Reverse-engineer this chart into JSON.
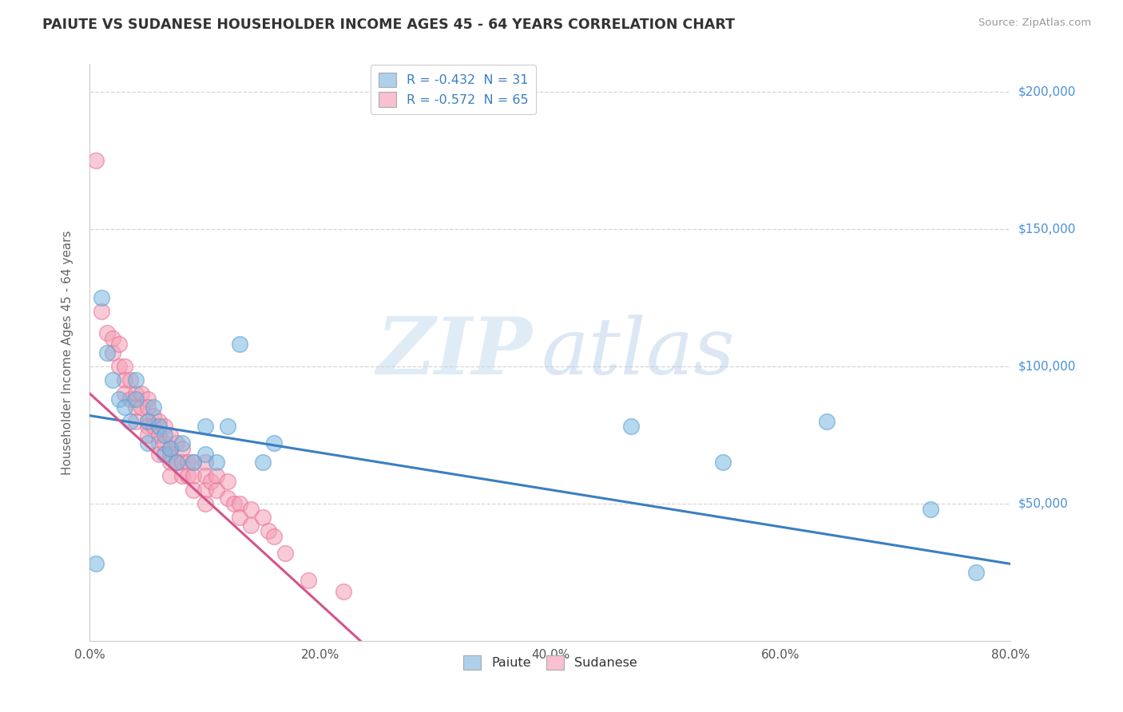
{
  "title": "PAIUTE VS SUDANESE HOUSEHOLDER INCOME AGES 45 - 64 YEARS CORRELATION CHART",
  "source": "Source: ZipAtlas.com",
  "ylabel": "Householder Income Ages 45 - 64 years",
  "xlim": [
    0,
    0.8
  ],
  "ylim": [
    0,
    210000
  ],
  "yticks": [
    0,
    50000,
    100000,
    150000,
    200000
  ],
  "xtick_labels": [
    "0.0%",
    "20.0%",
    "40.0%",
    "60.0%",
    "80.0%"
  ],
  "xticks": [
    0.0,
    0.2,
    0.4,
    0.6,
    0.8
  ],
  "paiute_color": "#7ab8e0",
  "sudanese_color": "#f4a0b5",
  "paiute_edge_color": "#5a9fd4",
  "sudanese_edge_color": "#e87098",
  "paiute_line_color": "#3a7fc1",
  "sudanese_line_color": "#d4548a",
  "legend_paiute_fill": "#afd0eb",
  "legend_sudanese_fill": "#f8c0d0",
  "R_paiute": -0.432,
  "N_paiute": 31,
  "R_sudanese": -0.572,
  "N_sudanese": 65,
  "watermark_zip": "ZIP",
  "watermark_atlas": "atlas",
  "paiute_line_x0": 0.0,
  "paiute_line_y0": 82000,
  "paiute_line_x1": 0.8,
  "paiute_line_y1": 28000,
  "sudanese_line_x0": 0.0,
  "sudanese_line_y0": 90000,
  "sudanese_line_x1": 0.235,
  "sudanese_line_y1": 0,
  "paiute_x": [
    0.005,
    0.01,
    0.015,
    0.02,
    0.025,
    0.03,
    0.035,
    0.04,
    0.04,
    0.05,
    0.05,
    0.055,
    0.06,
    0.065,
    0.065,
    0.07,
    0.075,
    0.08,
    0.09,
    0.1,
    0.1,
    0.11,
    0.12,
    0.13,
    0.15,
    0.16,
    0.47,
    0.55,
    0.64,
    0.73,
    0.77
  ],
  "paiute_y": [
    28000,
    125000,
    105000,
    95000,
    88000,
    85000,
    80000,
    95000,
    88000,
    80000,
    72000,
    85000,
    78000,
    75000,
    68000,
    70000,
    65000,
    72000,
    65000,
    68000,
    78000,
    65000,
    78000,
    108000,
    65000,
    72000,
    78000,
    65000,
    80000,
    48000,
    25000
  ],
  "sudanese_x": [
    0.005,
    0.01,
    0.015,
    0.02,
    0.02,
    0.025,
    0.025,
    0.03,
    0.03,
    0.03,
    0.035,
    0.035,
    0.04,
    0.04,
    0.04,
    0.045,
    0.045,
    0.05,
    0.05,
    0.05,
    0.05,
    0.05,
    0.055,
    0.055,
    0.06,
    0.06,
    0.06,
    0.06,
    0.065,
    0.065,
    0.07,
    0.07,
    0.07,
    0.07,
    0.07,
    0.075,
    0.075,
    0.08,
    0.08,
    0.08,
    0.085,
    0.085,
    0.09,
    0.09,
    0.09,
    0.1,
    0.1,
    0.1,
    0.1,
    0.105,
    0.11,
    0.11,
    0.12,
    0.12,
    0.125,
    0.13,
    0.13,
    0.14,
    0.14,
    0.15,
    0.155,
    0.16,
    0.17,
    0.19,
    0.22
  ],
  "sudanese_y": [
    175000,
    120000,
    112000,
    110000,
    105000,
    108000,
    100000,
    100000,
    95000,
    90000,
    95000,
    88000,
    90000,
    85000,
    80000,
    90000,
    85000,
    88000,
    85000,
    80000,
    78000,
    75000,
    82000,
    78000,
    80000,
    75000,
    72000,
    68000,
    78000,
    72000,
    75000,
    70000,
    68000,
    65000,
    60000,
    72000,
    65000,
    70000,
    65000,
    60000,
    65000,
    60000,
    65000,
    60000,
    55000,
    65000,
    60000,
    55000,
    50000,
    58000,
    60000,
    55000,
    58000,
    52000,
    50000,
    50000,
    45000,
    48000,
    42000,
    45000,
    40000,
    38000,
    32000,
    22000,
    18000
  ]
}
